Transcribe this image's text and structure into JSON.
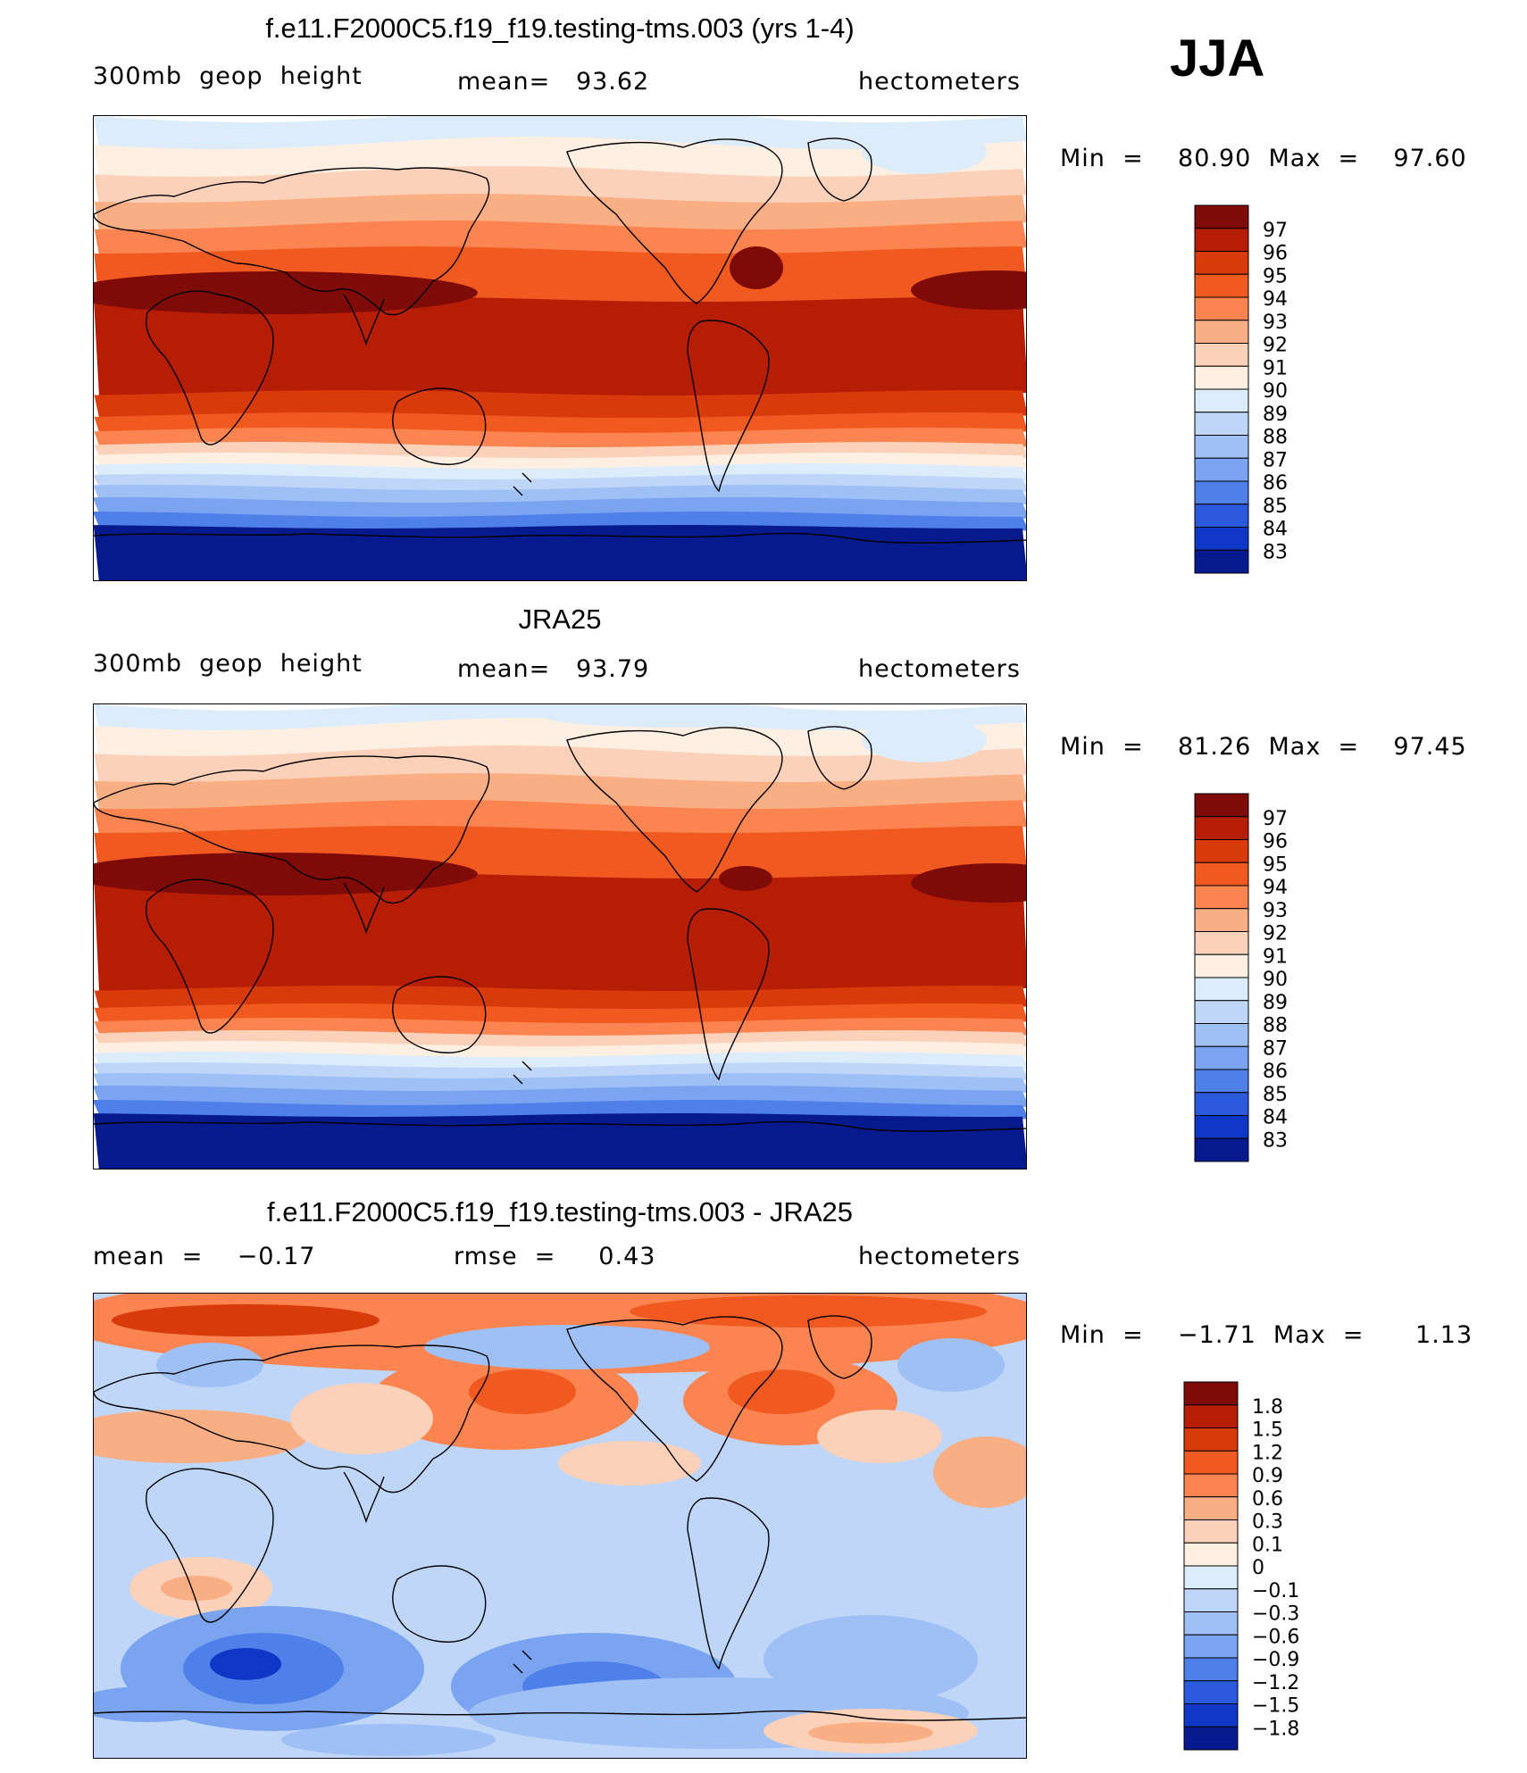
{
  "season": "JJA",
  "panels": [
    {
      "id": "model",
      "title": "f.e11.F2000C5.f19_f19.testing-tms.003 (yrs 1-4)",
      "left_label": "300mb  geop  height",
      "center_label": "mean=   93.62",
      "right_label": "hectometers",
      "minmax": "Min  =    80.90  Max  =    97.60",
      "legend_labels": [
        "97",
        "96",
        "95",
        "94",
        "93",
        "92",
        "91",
        "90",
        "89",
        "88",
        "87",
        "86",
        "85",
        "84",
        "83"
      ]
    },
    {
      "id": "obs",
      "title": "JRA25",
      "left_label": "300mb  geop  height",
      "center_label": "mean=   93.79",
      "right_label": "hectometers",
      "minmax": "Min  =    81.26  Max  =    97.45",
      "legend_labels": [
        "97",
        "96",
        "95",
        "94",
        "93",
        "92",
        "91",
        "90",
        "89",
        "88",
        "87",
        "86",
        "85",
        "84",
        "83"
      ]
    },
    {
      "id": "diff",
      "title": "f.e11.F2000C5.f19_f19.testing-tms.003 - JRA25",
      "left_label": "mean  =    −0.17",
      "center_label": "rmse  =     0.43",
      "right_label": "hectometers",
      "minmax": "Min  =    −1.71  Max  =      1.13",
      "legend_labels": [
        "1.8",
        "1.5",
        "1.2",
        "0.9",
        "0.6",
        "0.3",
        "0.1",
        "0",
        "−0.1",
        "−0.3",
        "−0.6",
        "−0.9",
        "−1.2",
        "−1.5",
        "−1.8"
      ]
    }
  ],
  "colors": {
    "scale_16": [
      "#7e0b08",
      "#b51e05",
      "#d83a0b",
      "#f05a21",
      "#fb8451",
      "#f9ae84",
      "#fbd1ba",
      "#fdefe2",
      "#dcecfb",
      "#bfd6f8",
      "#9fc0f5",
      "#7aa3f0",
      "#4f7fe8",
      "#2a59dc",
      "#0f37c6",
      "#061a8e"
    ],
    "coast": "#000000",
    "frame": "#000000"
  }
}
